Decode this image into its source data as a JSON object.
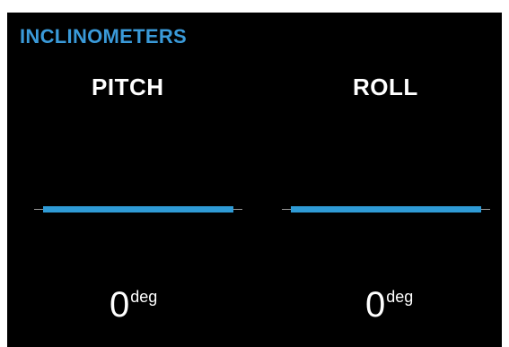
{
  "panel": {
    "title": "INCLINOMETERS",
    "title_color": "#3a9ad9",
    "bar_color": "#2f9bd6",
    "background": "#000000"
  },
  "pitch": {
    "label": "PITCH",
    "value": "0",
    "unit": "deg"
  },
  "roll": {
    "label": "ROLL",
    "value": "0",
    "unit": "deg"
  }
}
